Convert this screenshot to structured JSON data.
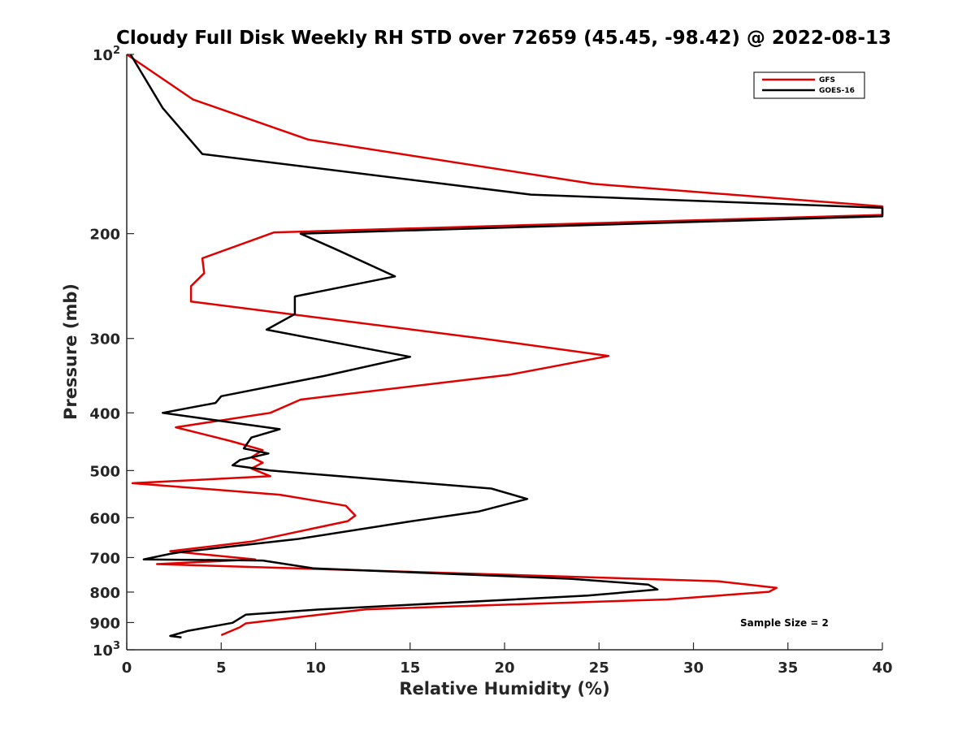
{
  "chart_data": {
    "type": "line",
    "title": "Cloudy Full Disk Weekly RH STD over 72659 (45.45, -98.42) @ 2022-08-13",
    "xlabel": "Relative Humidity (%)",
    "ylabel": "Pressure (mb)",
    "xlim": [
      0,
      40
    ],
    "ylim": [
      100,
      1000
    ],
    "y_scale": "log",
    "y_reversed": true,
    "grid": false,
    "legend_position": "top-right",
    "x_ticks": [
      0,
      5,
      10,
      15,
      20,
      25,
      30,
      35,
      40
    ],
    "y_ticks": [
      {
        "value": 100,
        "label": "10",
        "sup": "2"
      },
      {
        "value": 200,
        "label": "200",
        "sup": ""
      },
      {
        "value": 300,
        "label": "300",
        "sup": ""
      },
      {
        "value": 400,
        "label": "400",
        "sup": ""
      },
      {
        "value": 500,
        "label": "500",
        "sup": ""
      },
      {
        "value": 600,
        "label": "600",
        "sup": ""
      },
      {
        "value": 700,
        "label": "700",
        "sup": ""
      },
      {
        "value": 800,
        "label": "800",
        "sup": ""
      },
      {
        "value": 900,
        "label": "900",
        "sup": ""
      },
      {
        "value": 1000,
        "label": "10",
        "sup": "3"
      }
    ],
    "series": [
      {
        "name": "GFS",
        "color": "#e00000",
        "x": [
          0,
          3.5,
          9.6,
          24.7,
          40,
          40,
          7.8,
          4.0,
          4.1,
          3.4,
          3.4,
          18.8,
          25.5,
          20.3,
          9.2,
          7.6,
          2.6,
          5.5,
          7.2,
          6.6,
          7.2,
          6.6,
          7.6,
          0.3,
          8.1,
          11.6,
          12.1,
          11.7,
          6.6,
          2.3,
          6.8,
          1.6,
          31.3,
          34.4,
          34.0,
          28.6,
          12.7,
          9.3,
          6.3,
          6.0,
          5.0
        ],
        "y": [
          100,
          119,
          139,
          165,
          180,
          186,
          199,
          220,
          233,
          245,
          260,
          300,
          321,
          345,
          380,
          400,
          423,
          446,
          462,
          475,
          485,
          496,
          511,
          525,
          549,
          573,
          595,
          608,
          658,
          683,
          705,
          718,
          767,
          787,
          799,
          823,
          855,
          880,
          903,
          916,
          945
        ]
      },
      {
        "name": "GOES-16",
        "color": "#000000",
        "x": [
          0.2,
          1.9,
          4.0,
          21.4,
          40,
          40,
          9.2,
          11.0,
          14.2,
          8.9,
          8.9,
          7.4,
          15.0,
          10.4,
          5.0,
          4.7,
          1.9,
          8.1,
          6.6,
          6.2,
          7.5,
          6.0,
          5.6,
          7.6,
          19.3,
          21.2,
          18.6,
          15.1,
          9.0,
          2.9,
          2.3,
          0.9,
          7.2,
          9.9,
          23.5,
          27.6,
          28.1,
          24.4,
          10.1,
          6.3,
          5.6,
          3.2,
          2.3,
          2.9
        ],
        "y": [
          100,
          123,
          147,
          172,
          181,
          187,
          200,
          212,
          236,
          255,
          273,
          290,
          322,
          347,
          375,
          385,
          400,
          426,
          440,
          459,
          468,
          480,
          490,
          500,
          536,
          558,
          586,
          608,
          652,
          685,
          690,
          705,
          708,
          730,
          760,
          777,
          792,
          811,
          856,
          873,
          901,
          930,
          948,
          953
        ]
      }
    ],
    "annotations": [
      "Sample Size = 2"
    ]
  }
}
